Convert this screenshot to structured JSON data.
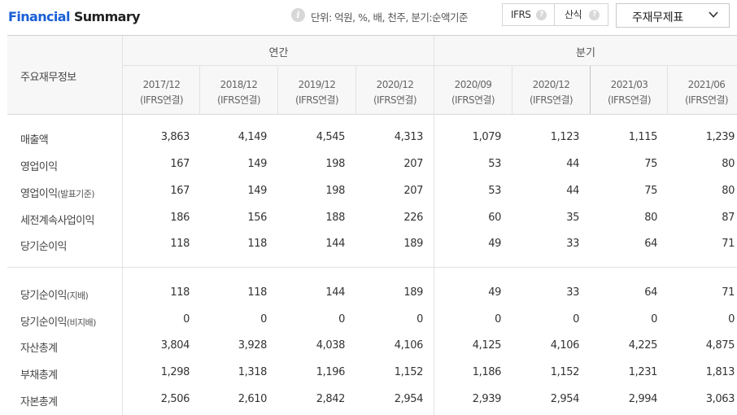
{
  "header": {
    "title_part1": "Financial",
    "title_part2": "Summary",
    "info_icon": "i",
    "unit_text": "단위: 억원, %, 배, 천주, 분기:순액기준",
    "toggle": {
      "option1": "IFRS",
      "option2": "산식",
      "help": "?"
    },
    "statement_select": {
      "label": "주재무제표",
      "icon": "chevron-down-icon"
    }
  },
  "table": {
    "row_header": "주요재무정보",
    "groups": {
      "annual": "연간",
      "quarterly": "분기"
    },
    "columns": [
      {
        "period": "2017/12",
        "basis": "(IFRS연결)"
      },
      {
        "period": "2018/12",
        "basis": "(IFRS연결)"
      },
      {
        "period": "2019/12",
        "basis": "(IFRS연결)"
      },
      {
        "period": "2020/12",
        "basis": "(IFRS연결)"
      },
      {
        "period": "2020/09",
        "basis": "(IFRS연결)"
      },
      {
        "period": "2020/12",
        "basis": "(IFRS연결)"
      },
      {
        "period": "2021/03",
        "basis": "(IFRS연결)"
      },
      {
        "period": "2021/06",
        "basis": "(IFRS연결)"
      }
    ],
    "rows": [
      {
        "label": "매출액",
        "sub": "",
        "values": [
          "3,863",
          "4,149",
          "4,545",
          "4,313",
          "1,079",
          "1,123",
          "1,115",
          "1,239"
        ]
      },
      {
        "label": "영업이익",
        "sub": "",
        "values": [
          "167",
          "149",
          "198",
          "207",
          "53",
          "44",
          "75",
          "80"
        ]
      },
      {
        "label": "영업이익",
        "sub": "(발표기준)",
        "values": [
          "167",
          "149",
          "198",
          "207",
          "53",
          "44",
          "75",
          "80"
        ]
      },
      {
        "label": "세전계속사업이익",
        "sub": "",
        "values": [
          "186",
          "156",
          "188",
          "226",
          "60",
          "35",
          "80",
          "87"
        ]
      },
      {
        "label": "당기순이익",
        "sub": "",
        "values": [
          "118",
          "118",
          "144",
          "189",
          "49",
          "33",
          "64",
          "71"
        ]
      },
      {
        "label": "당기순이익",
        "sub": "(지배)",
        "values": [
          "118",
          "118",
          "144",
          "189",
          "49",
          "33",
          "64",
          "71"
        ]
      },
      {
        "label": "당기순이익",
        "sub": "(비지배)",
        "values": [
          "0",
          "0",
          "0",
          "0",
          "0",
          "0",
          "0",
          "0"
        ]
      },
      {
        "label": "자산총계",
        "sub": "",
        "values": [
          "3,804",
          "3,928",
          "4,038",
          "4,106",
          "4,125",
          "4,106",
          "4,225",
          "4,875"
        ]
      },
      {
        "label": "부채총계",
        "sub": "",
        "values": [
          "1,298",
          "1,318",
          "1,196",
          "1,152",
          "1,186",
          "1,152",
          "1,231",
          "1,813"
        ]
      },
      {
        "label": "자본총계",
        "sub": "",
        "values": [
          "2,506",
          "2,610",
          "2,842",
          "2,954",
          "2,939",
          "2,954",
          "2,994",
          "3,063"
        ]
      }
    ]
  }
}
